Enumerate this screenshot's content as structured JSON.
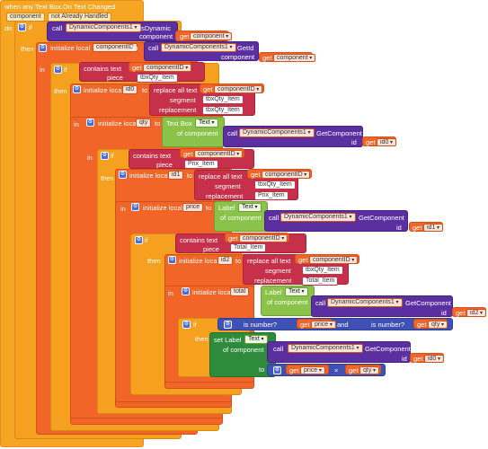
{
  "event": {
    "title": "when any Text Box.On Text Changed",
    "params": [
      "component",
      "not Already Handled"
    ],
    "do": "do"
  },
  "kw": {
    "if": "if",
    "then": "then",
    "in": "in",
    "to": "to",
    "call": "call",
    "get": "get",
    "set_label": "set Label",
    "and": "and",
    "times": "×",
    "text": "text",
    "piece": "piece",
    "segment": "segment",
    "replacement": "replacement",
    "of_component": "of component",
    "component": "component",
    "id": "id",
    "contains_text": "contains text",
    "replace_all_text": "replace all text",
    "is_number": "is number?",
    "init_local": "initialize local"
  },
  "calls": {
    "is_dynamic": "DynamicComponents1",
    "is_dynamic_method": "IsDynamic",
    "get_id": "DynamicComponents1",
    "get_id_method": "GetId",
    "get_component": "DynamicComponents1",
    "get_component_method": "GetComponent"
  },
  "vars": {
    "componentID": "componentID",
    "id0": "id0",
    "qty": "qty",
    "id1": "id1",
    "price": "price",
    "id2": "id2",
    "total": "total",
    "component": "component"
  },
  "strings": {
    "tbxQty": "tbxQty_Item",
    "prix": "Prix_Item",
    "total": "Total_Item"
  },
  "types": {
    "textbox": "Text Box",
    "label": "Label",
    "text_prop": "Text"
  },
  "colors": {
    "event": "#f6a623",
    "control": "#f5a01e",
    "variable": "#f16528",
    "text": "#c6304a",
    "component": "#5c2fa0",
    "label": "#8bc34a",
    "setter": "#2f8b3c",
    "math": "#3f51b5"
  }
}
